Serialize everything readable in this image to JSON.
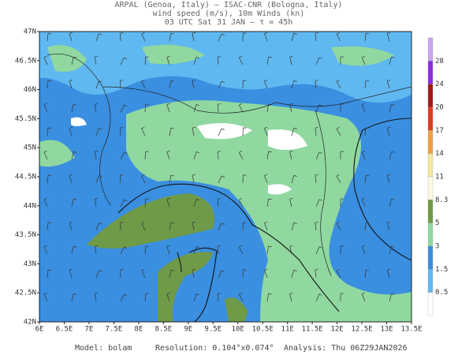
{
  "header": {
    "lines": [
      "ARPAL (Genoa, Italy)  —  ISAC-CNR (Bologna, Italy)",
      "wind speed (m/s), 10m Winds (kn)",
      "03 UTC Sat 31 JAN  —  τ = 45h"
    ]
  },
  "map": {
    "lat_labels": [
      "47N",
      "46.5N",
      "46N",
      "45.5N",
      "45N",
      "44.5N",
      "44N",
      "43.5N",
      "43N",
      "42.5N",
      "42N"
    ],
    "lon_labels": [
      "6E",
      "6.5E",
      "7E",
      "7.5E",
      "8E",
      "8.5E",
      "9E",
      "9.5E",
      "10E",
      "10.5E",
      "11E",
      "11.5E",
      "12E",
      "12.5E",
      "13E",
      "13.5E"
    ]
  },
  "colorbar": {
    "labels": [
      "28",
      "24",
      "20",
      "17",
      "14",
      "11",
      "8.3",
      "5",
      "3",
      "1.5",
      "0.5"
    ],
    "colors": [
      "#c9a6f0",
      "#8a2be2",
      "#a01818",
      "#e03a1e",
      "#f0a040",
      "#f7e7a0",
      "#fdfbe0",
      "#6f9a48",
      "#90d8a0",
      "#3a8fe0",
      "#60b8f0",
      "#ffffff"
    ]
  },
  "footer": {
    "model": "Model: bolam",
    "resolution": "Resolution: 0.104°x0.074°",
    "analysis": "Analysis: Thu 06Z29JAN2026"
  }
}
